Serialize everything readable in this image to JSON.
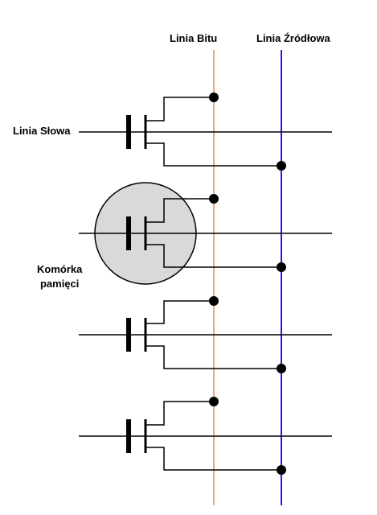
{
  "labels": {
    "bit_line": "Linia Bitu",
    "source_line": "Linia Źródłowa",
    "word_line": "Linia Słowa",
    "memory_cell_line1": "Komórka",
    "memory_cell_line2": "pamięci"
  },
  "colors": {
    "bit_line": "#f4a77a",
    "source_line": "#1a1aff",
    "wire": "#000000",
    "cell_fill": "#d9d9d9"
  },
  "cell_count": 4,
  "highlighted_cell": 2
}
